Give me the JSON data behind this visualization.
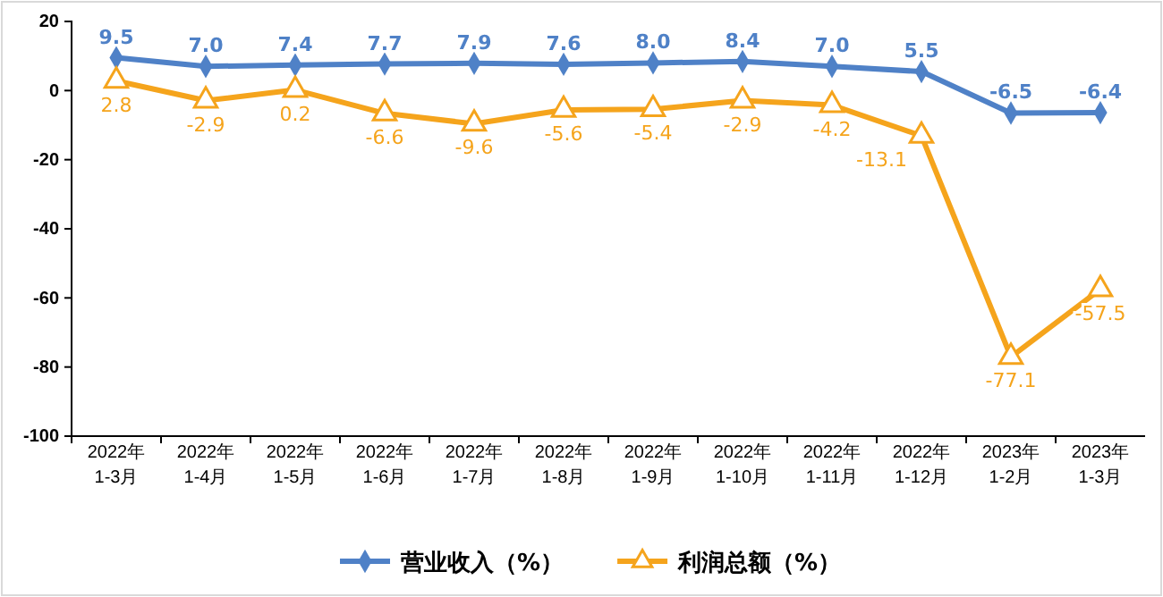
{
  "chart_data": {
    "type": "line",
    "categories": [
      "2022年\n1-3月",
      "2022年\n1-4月",
      "2022年\n1-5月",
      "2022年\n1-6月",
      "2022年\n1-7月",
      "2022年\n1-8月",
      "2022年\n1-9月",
      "2022年\n1-10月",
      "2022年\n1-11月",
      "2022年\n1-12月",
      "2023年\n1-2月",
      "2023年\n1-3月"
    ],
    "series": [
      {
        "name": "营业收入（%）",
        "color": "#4f81c7",
        "marker": "diamond",
        "values": [
          9.5,
          7.0,
          7.4,
          7.7,
          7.9,
          7.6,
          8.0,
          8.4,
          7.0,
          5.5,
          -6.5,
          -6.4
        ],
        "value_labels": [
          "9.5",
          "7.0",
          "7.4",
          "7.7",
          "7.9",
          "7.6",
          "8.0",
          "8.4",
          "7.0",
          "5.5",
          "-6.5",
          "-6.4"
        ]
      },
      {
        "name": "利润总额（%）",
        "color": "#f5a41c",
        "marker": "triangle",
        "values": [
          2.8,
          -2.9,
          0.2,
          -6.6,
          -9.6,
          -5.6,
          -5.4,
          -2.9,
          -4.2,
          -13.1,
          -77.1,
          -57.5
        ],
        "value_labels": [
          "2.8",
          "-2.9",
          "0.2",
          "-6.6",
          "-9.6",
          "-5.6",
          "-5.4",
          "-2.9",
          "-4.2",
          "-13.1",
          "-77.1",
          "-57.5"
        ]
      }
    ],
    "ylim": [
      -100,
      20
    ],
    "yticks": [
      -100,
      -80,
      -60,
      -40,
      -20,
      0,
      20
    ],
    "grid": false,
    "legend": "bottom"
  }
}
